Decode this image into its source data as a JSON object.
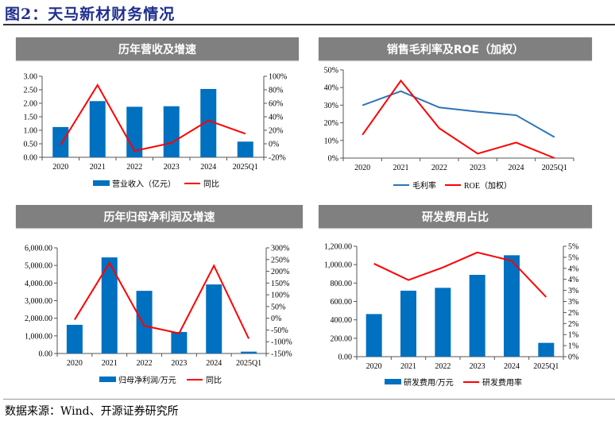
{
  "figure_title": "图2：天马新材财务情况",
  "source": "数据来源：Wind、开源证券研究所",
  "colors": {
    "bar": "#0070c0",
    "red_line": "#ff0000",
    "blue_line": "#2e75b6",
    "header_bg": "#808080"
  },
  "chart_data": [
    {
      "panel_title": "历年营收及增速",
      "type": "bar+line",
      "categories": [
        "2020",
        "2021",
        "2022",
        "2023",
        "2024",
        "2025Q1"
      ],
      "left_axis": {
        "range": [
          0,
          3
        ],
        "ticks": [
          "0.00",
          "0.50",
          "1.00",
          "1.50",
          "2.00",
          "2.50",
          "3.00"
        ]
      },
      "right_axis": {
        "range": [
          -20,
          100
        ],
        "ticks": [
          "-20%",
          "0%",
          "20%",
          "40%",
          "60%",
          "80%",
          "100%"
        ]
      },
      "series": [
        {
          "name": "营业收入（亿元）",
          "type": "bar",
          "axis": "left",
          "values": [
            1.12,
            2.08,
            1.87,
            1.89,
            2.53,
            0.58
          ]
        },
        {
          "name": "同比",
          "type": "line",
          "axis": "right",
          "color": "#ff0000",
          "values": [
            -1.6,
            87,
            -10.6,
            1.2,
            34.5,
            14.9
          ]
        }
      ],
      "legend": "bottom"
    },
    {
      "panel_title": "销售毛利率及ROE（加权）",
      "type": "line",
      "categories": [
        "2020",
        "2021",
        "2022",
        "2023",
        "2024",
        "2025Q1"
      ],
      "left_axis": {
        "range": [
          0,
          50
        ],
        "ticks": [
          "0%",
          "10%",
          "20%",
          "30%",
          "40%",
          "50%"
        ]
      },
      "series": [
        {
          "name": "毛利率",
          "type": "line",
          "axis": "left",
          "color": "#2e75b6",
          "values": [
            29.9,
            37.9,
            28.7,
            26.3,
            24.3,
            11.9
          ]
        },
        {
          "name": "ROE（加权）",
          "type": "line",
          "axis": "left",
          "color": "#ff0000",
          "values": [
            13.2,
            43.9,
            16.9,
            2.5,
            8.8,
            0.0
          ]
        }
      ],
      "legend": "bottom"
    },
    {
      "panel_title": "历年归母净利润及增速",
      "type": "bar+line",
      "categories": [
        "2020",
        "2021",
        "2022",
        "2023",
        "2024",
        "2025Q1"
      ],
      "left_axis": {
        "range": [
          0,
          6000
        ],
        "ticks": [
          "0.00",
          "1,000.00",
          "2,000.00",
          "3,000.00",
          "4,000.00",
          "5,000.00",
          "6,000.00"
        ]
      },
      "right_axis": {
        "range": [
          -150,
          300
        ],
        "ticks": [
          "-150%",
          "-100%",
          "-50%",
          "0%",
          "50%",
          "100%",
          "150%",
          "200%",
          "250%",
          "300%"
        ]
      },
      "series": [
        {
          "name": "归母净利润/万元",
          "type": "bar",
          "axis": "left",
          "values": [
            1628,
            5457,
            3558,
            1221,
            3920,
            105
          ]
        },
        {
          "name": "同比",
          "type": "line",
          "axis": "right",
          "color": "#ff0000",
          "values": [
            -6,
            236,
            -32,
            -64,
            224,
            -87
          ]
        }
      ],
      "legend": "bottom"
    },
    {
      "panel_title": "研发费用占比",
      "type": "bar+line",
      "categories": [
        "2020",
        "2021",
        "2022",
        "2023",
        "2024",
        "2025Q1"
      ],
      "left_axis": {
        "range": [
          0,
          1200
        ],
        "ticks": [
          "0.00",
          "200.00",
          "400.00",
          "600.00",
          "800.00",
          "1,000.00",
          "1,200.00"
        ]
      },
      "right_axis": {
        "range": [
          0,
          5
        ],
        "ticks": [
          "0%",
          "1%",
          "1%",
          "2%",
          "2%",
          "3%",
          "3%",
          "4%",
          "4%",
          "5%",
          "5%"
        ]
      },
      "series": [
        {
          "name": "研发费用/万元",
          "type": "bar",
          "axis": "left",
          "values": [
            463,
            717,
            748,
            889,
            1102,
            150
          ]
        },
        {
          "name": "研发费用率",
          "type": "line",
          "axis": "right",
          "color": "#ff0000",
          "values": [
            4.21,
            3.47,
            4.04,
            4.72,
            4.34,
            2.7
          ]
        }
      ],
      "legend": "bottom"
    }
  ]
}
